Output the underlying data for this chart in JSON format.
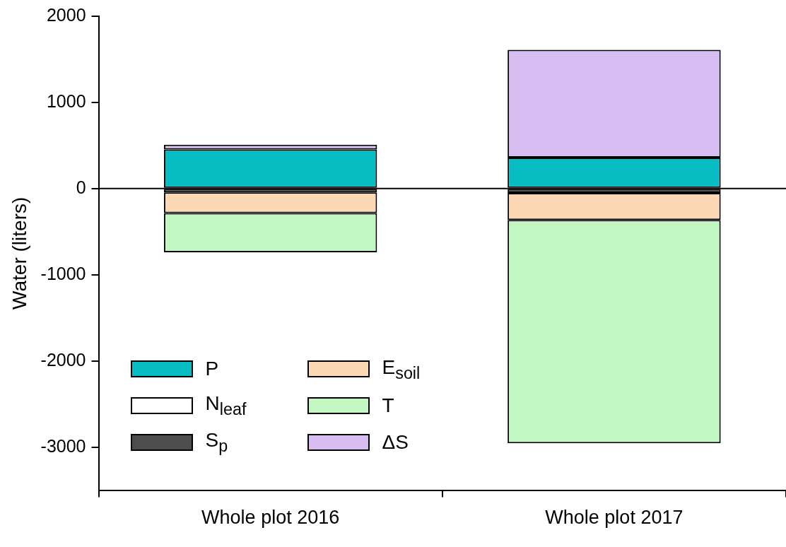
{
  "chart_data": {
    "type": "bar",
    "ylabel": "Water (liters)",
    "categories": [
      "Whole plot 2016",
      "Whole plot 2017"
    ],
    "stacked": true,
    "series": [
      {
        "name": "P",
        "color": "#08bcc4",
        "values": [
          455,
          360
        ]
      },
      {
        "name": "N$_{leaf}$",
        "color": "#ffffff",
        "values": [
          -5,
          -5
        ]
      },
      {
        "name": "S$_{p}$",
        "color": "#4d4d4d",
        "values": [
          -40,
          -45
        ]
      },
      {
        "name": "E$_{soil}$",
        "color": "#fcd9b4",
        "values": [
          -240,
          -315
        ]
      },
      {
        "name": "T",
        "color": "#c2f7c2",
        "values": [
          -455,
          -2590
        ]
      },
      {
        "name": "ΔS",
        "color": "#d7bdf2",
        "values": [
          55,
          1250
        ]
      }
    ],
    "ylim": [
      -3500,
      2000
    ],
    "yticks": [
      -3000,
      -2000,
      -1000,
      0,
      1000,
      2000
    ],
    "ref_lines": [
      {
        "axis": "y",
        "value": 0
      }
    ],
    "grid": false,
    "legend": "bottom left"
  }
}
